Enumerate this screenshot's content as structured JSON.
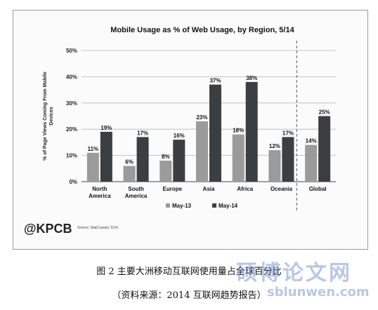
{
  "chart_data": {
    "type": "bar",
    "title": "Mobile Usage as % of Web Usage, by Region, 5/14",
    "ylabel": "% of Page Views Coming From Mobile Devices",
    "xlabel": "",
    "ylim": [
      0,
      50
    ],
    "yticks": [
      "0%",
      "10%",
      "20%",
      "30%",
      "40%",
      "50%"
    ],
    "categories": [
      "North America",
      "South America",
      "Europe",
      "Asia",
      "Africa",
      "Oceania",
      "Global"
    ],
    "series": [
      {
        "name": "May-13",
        "values": [
          11,
          6,
          8,
          23,
          18,
          12,
          14
        ],
        "labels": [
          "11%",
          "6%",
          "8%",
          "23%",
          "18%",
          "12%",
          "14%"
        ],
        "color": "#9b9b9b"
      },
      {
        "name": "May-14",
        "values": [
          19,
          17,
          16,
          37,
          38,
          17,
          25
        ],
        "labels": [
          "19%",
          "17%",
          "16%",
          "37%",
          "38%",
          "17%",
          "25%"
        ],
        "color": "#3b3f42"
      }
    ],
    "grid": true,
    "legend": "bottom-center",
    "separator_before": "Global"
  },
  "brand": "@KPCB",
  "brand_source": "Source: StatCounter, 5/14.",
  "caption": "图 2   主要大洲移动互联网使用量占全球百分比",
  "source_note": "（资料来源：2014 互联网趋势报告）",
  "watermark": {
    "chinese": "硕博论文网",
    "url": "sblunwen.com"
  }
}
